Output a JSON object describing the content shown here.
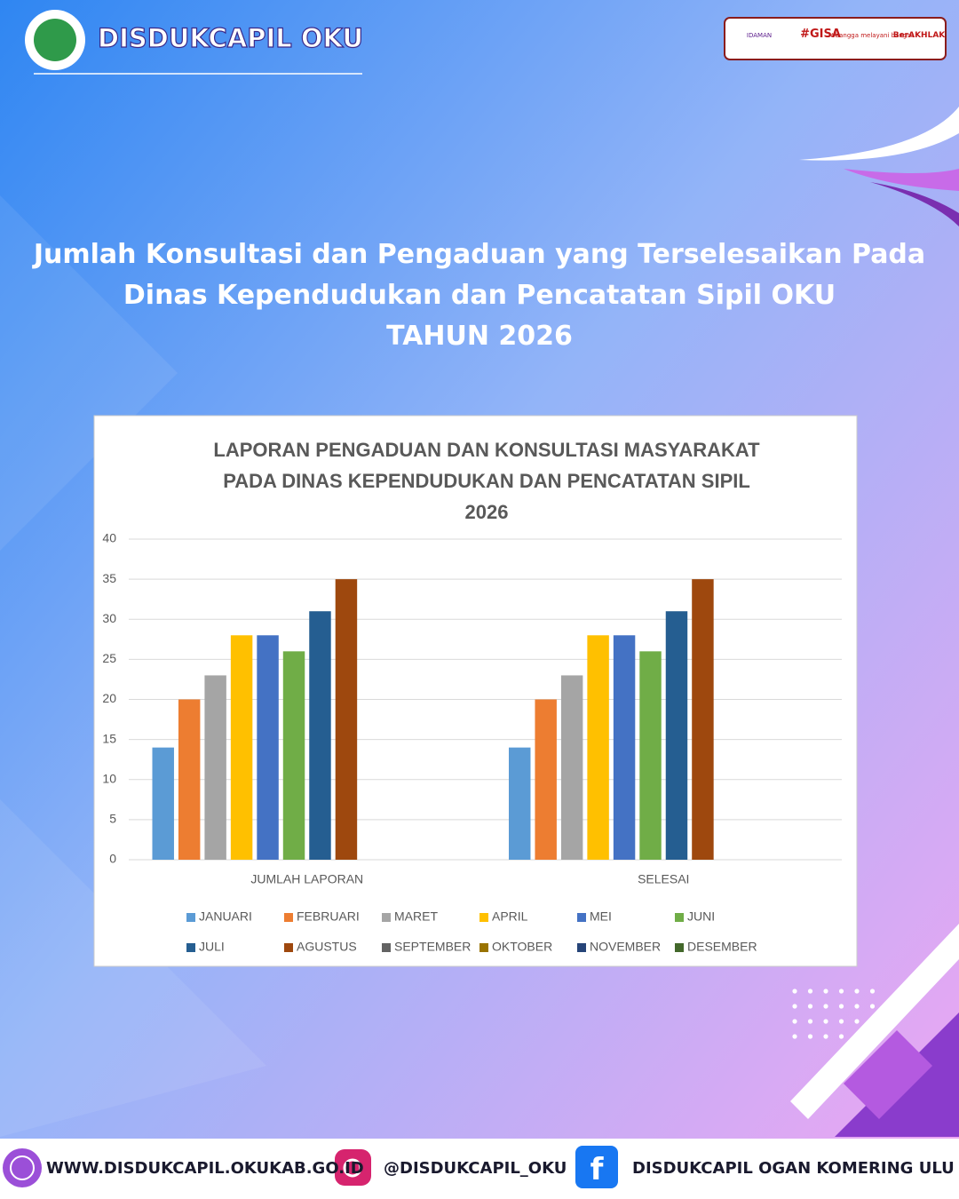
{
  "header": {
    "brand": "DISDUKCAPIL OKU",
    "badges": [
      "IDAMAN",
      "#GISA",
      "#bangga melayani bangsa",
      "BerAKHLAK"
    ]
  },
  "headline": {
    "lines": [
      "Jumlah Konsultasi dan Pengaduan yang Terselesaikan Pada",
      "Dinas Kependudukan dan Pencatatan Sipil OKU",
      "TAHUN 2026"
    ]
  },
  "chart_data": {
    "type": "bar",
    "title": [
      "LAPORAN PENGADUAN DAN KONSULTASI MASYARAKAT",
      "PADA DINAS KEPENDUDUKAN DAN PENCATATAN SIPIL",
      "2026"
    ],
    "categories": [
      "JUMLAH LAPORAN",
      "SELESAI"
    ],
    "series": [
      {
        "name": "JANUARI",
        "color": "#5b9bd5",
        "values": [
          14,
          14
        ]
      },
      {
        "name": "FEBRUARI",
        "color": "#ed7d31",
        "values": [
          20,
          20
        ]
      },
      {
        "name": "MARET",
        "color": "#a5a5a5",
        "values": [
          23,
          23
        ]
      },
      {
        "name": "APRIL",
        "color": "#ffc000",
        "values": [
          28,
          28
        ]
      },
      {
        "name": "MEI",
        "color": "#4472c4",
        "values": [
          28,
          28
        ]
      },
      {
        "name": "JUNI",
        "color": "#70ad47",
        "values": [
          26,
          26
        ]
      },
      {
        "name": "JULI",
        "color": "#255e91",
        "values": [
          31,
          31
        ]
      },
      {
        "name": "AGUSTUS",
        "color": "#9e480e",
        "values": [
          35,
          35
        ]
      },
      {
        "name": "SEPTEMBER",
        "color": "#636363",
        "values": [
          null,
          null
        ]
      },
      {
        "name": "OKTOBER",
        "color": "#997300",
        "values": [
          null,
          null
        ]
      },
      {
        "name": "NOVEMBER",
        "color": "#264478",
        "values": [
          null,
          null
        ]
      },
      {
        "name": "DESEMBER",
        "color": "#43682b",
        "values": [
          null,
          null
        ]
      }
    ],
    "ylim": [
      0,
      40
    ],
    "yticks": [
      0,
      5,
      10,
      15,
      20,
      25,
      30,
      35,
      40
    ],
    "grid": true,
    "legend": "bottom"
  },
  "footer": {
    "website": "WWW.DISDUKCAPIL.OKUKAB.GO.ID",
    "instagram": "@DISDUKCAPIL_OKU",
    "facebook": "DISDUKCAPIL OGAN KOMERING ULU"
  }
}
